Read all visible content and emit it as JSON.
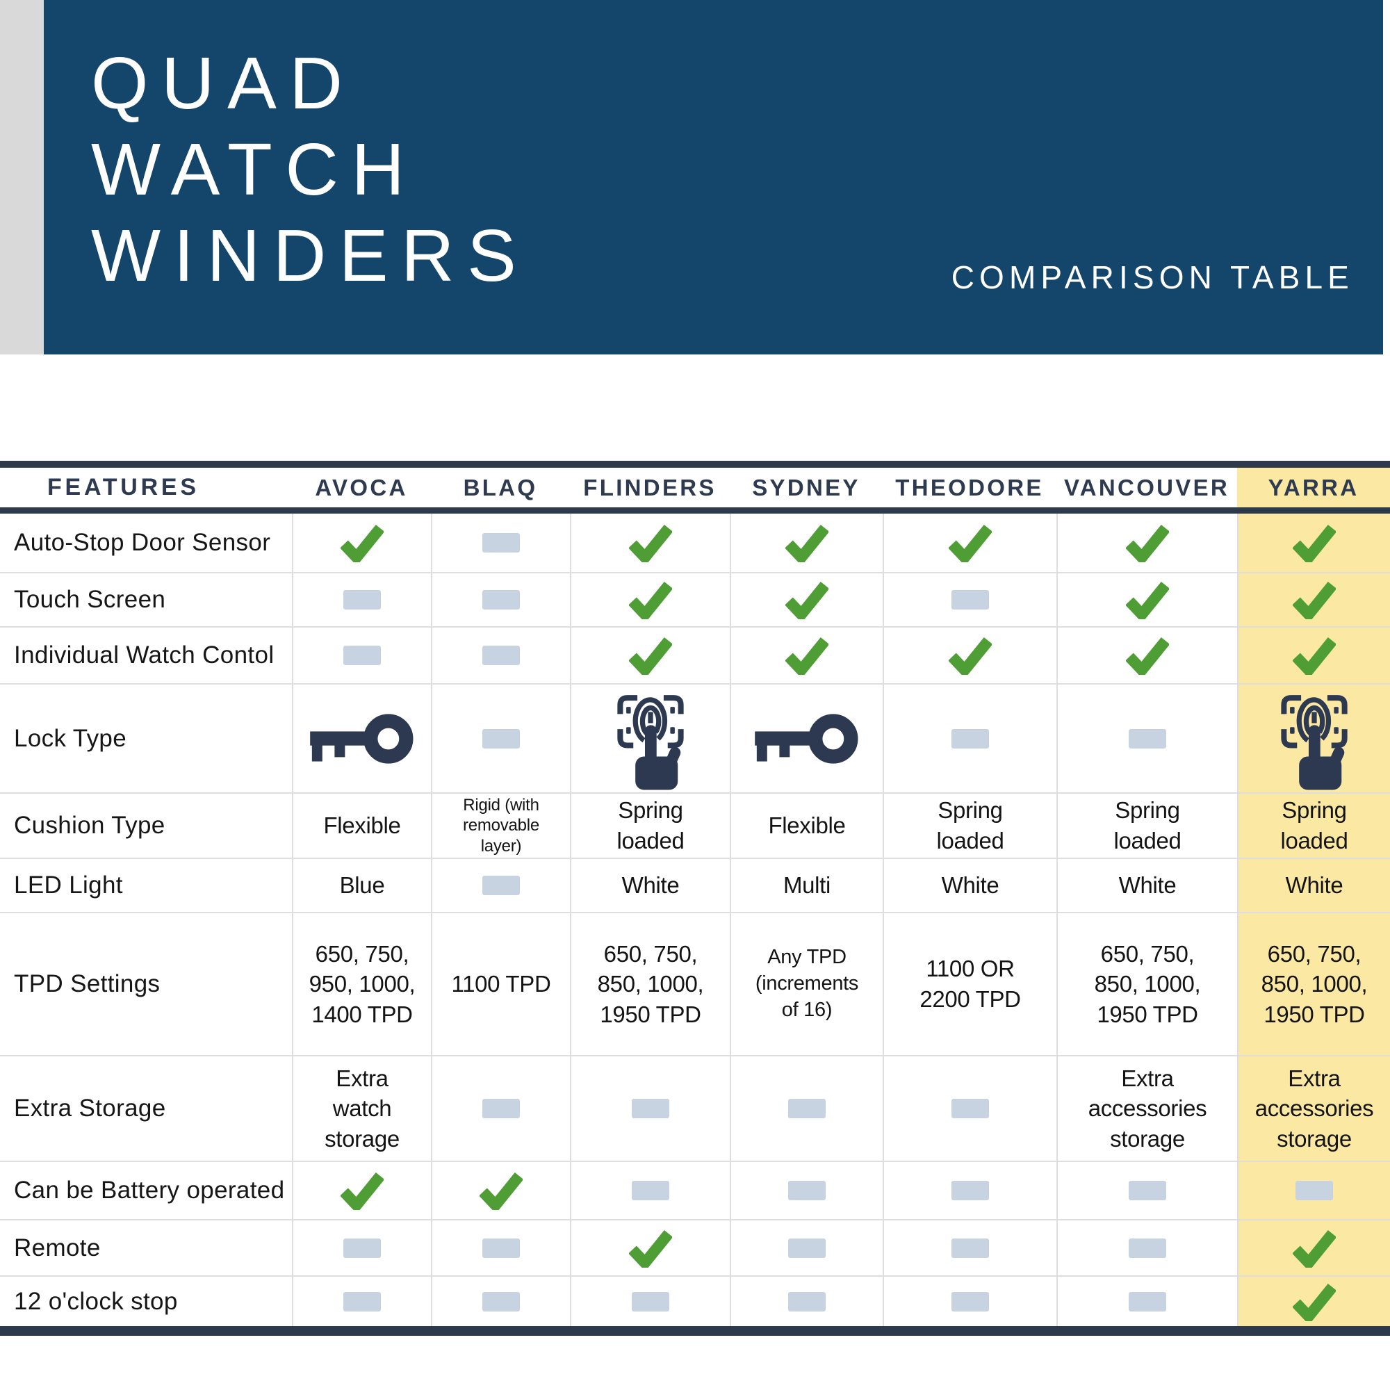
{
  "header": {
    "title_lines": [
      "QUAD",
      "WATCH",
      "WINDERS"
    ],
    "subtitle": "COMPARISON TABLE"
  },
  "table": {
    "features_header": "FEATURES",
    "columns": [
      "AVOCA",
      "BLAQ",
      "FLINDERS",
      "SYDNEY",
      "THEODORE",
      "VANCOUVER",
      "YARRA"
    ],
    "highlighted_column": "YARRA",
    "rows": [
      {
        "feature": "Auto-Stop Door Sensor",
        "cells": [
          "check",
          "dash",
          "check",
          "check",
          "check",
          "check",
          "check"
        ]
      },
      {
        "feature": "Touch Screen",
        "cells": [
          "dash",
          "dash",
          "check",
          "check",
          "dash",
          "check",
          "check"
        ]
      },
      {
        "feature": "Individual Watch Contol",
        "cells": [
          "dash",
          "dash",
          "check",
          "check",
          "check",
          "check",
          "check"
        ]
      },
      {
        "feature": "Lock Type",
        "cells": [
          "key",
          "dash",
          "fingerprint",
          "key",
          "dash",
          "dash",
          "fingerprint"
        ]
      },
      {
        "feature": "Cushion Type",
        "cells": [
          {
            "text": "Flexible"
          },
          {
            "text": "Rigid (with\nremovable\nlayer)",
            "size": "small"
          },
          {
            "text": "Spring\nloaded"
          },
          {
            "text": "Flexible"
          },
          {
            "text": "Spring\nloaded"
          },
          {
            "text": "Spring\nloaded"
          },
          {
            "text": "Spring\nloaded"
          }
        ]
      },
      {
        "feature": "LED Light",
        "cells": [
          {
            "text": "Blue"
          },
          "dash",
          {
            "text": "White"
          },
          {
            "text": "Multi"
          },
          {
            "text": "White"
          },
          {
            "text": "White"
          },
          {
            "text": "White"
          }
        ]
      },
      {
        "feature": "TPD Settings",
        "cells": [
          {
            "text": "650, 750,\n950, 1000,\n1400 TPD"
          },
          {
            "text": "1100 TPD"
          },
          {
            "text": "650, 750,\n850, 1000,\n1950 TPD"
          },
          {
            "text": "Any TPD\n(increments\nof 16)",
            "size": "medium"
          },
          {
            "text": "1100 OR\n2200 TPD"
          },
          {
            "text": "650, 750,\n850, 1000,\n1950 TPD"
          },
          {
            "text": "650, 750,\n850, 1000,\n1950 TPD"
          }
        ]
      },
      {
        "feature": "Extra Storage",
        "cells": [
          {
            "text": "Extra\nwatch\nstorage"
          },
          "dash",
          "dash",
          "dash",
          "dash",
          {
            "text": "Extra\naccessories\nstorage"
          },
          {
            "text": "Extra\naccessories\nstorage"
          }
        ]
      },
      {
        "feature": "Can be Battery operated",
        "cells": [
          "check",
          "check",
          "dash",
          "dash",
          "dash",
          "dash",
          "dash"
        ]
      },
      {
        "feature": "Remote",
        "cells": [
          "dash",
          "dash",
          "check",
          "dash",
          "dash",
          "dash",
          "check"
        ]
      },
      {
        "feature": "12 o'clock stop",
        "cells": [
          "dash",
          "dash",
          "dash",
          "dash",
          "dash",
          "dash",
          "check"
        ]
      }
    ]
  },
  "icons": {
    "check": "check-icon",
    "dash": "dash-icon",
    "key": "key-icon",
    "fingerprint": "fingerprint-scan-icon"
  },
  "colors": {
    "banner_navy": "#14456b",
    "bar_dark": "#2d3a4b",
    "header_text": "#2e3a4f",
    "check_green": "#4f9d35",
    "dash_gray": "#c7d3e1",
    "highlight_yellow": "#fbe8a3",
    "strip_gray": "#d9d9d9",
    "grid_line": "#dedede",
    "cell_text": "#141414"
  }
}
